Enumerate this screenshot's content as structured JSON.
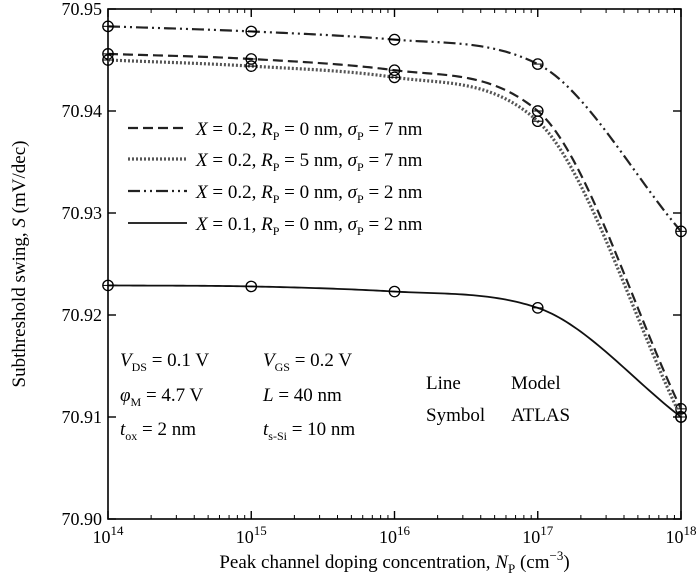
{
  "chart_data": {
    "type": "line",
    "x_scale": "log",
    "xlim": [
      100000000000000.0,
      1e+18
    ],
    "ylim": [
      70.9,
      70.95
    ],
    "x_ticks": [
      {
        "value": 100000000000000.0,
        "base": "10",
        "exp": "14"
      },
      {
        "value": 1000000000000000.0,
        "base": "10",
        "exp": "15"
      },
      {
        "value": 1e+16,
        "base": "10",
        "exp": "16"
      },
      {
        "value": 1e+17,
        "base": "10",
        "exp": "17"
      },
      {
        "value": 1e+18,
        "base": "10",
        "exp": "18"
      }
    ],
    "y_ticks": [
      "70.90",
      "70.91",
      "70.92",
      "70.93",
      "70.94",
      "70.95"
    ],
    "xlabel": {
      "main": "Peak channel doping concentration, ",
      "var": "N",
      "sub": "P",
      "unit_pre": " (cm",
      "unit_sup": "−3",
      "unit_post": ")"
    },
    "ylabel": {
      "main": "Subthreshold swing, ",
      "var": "S",
      "unit": " (mV/dec)"
    },
    "grid": false,
    "legend_position": "upper-left",
    "series": [
      {
        "name": "X = 0.2, RP = 0 nm, σP = 7 nm",
        "style": "dashed",
        "legend": {
          "x": "0.2",
          "r": "0",
          "s": "7"
        },
        "x": [
          100000000000000.0,
          1000000000000000.0,
          1e+16,
          1e+17,
          1e+18
        ],
        "y": [
          70.9456,
          70.9451,
          70.944,
          70.94,
          70.9108
        ]
      },
      {
        "name": "X = 0.2, RP = 5 nm, σP = 7 nm",
        "style": "dotted",
        "legend": {
          "x": "0.2",
          "r": "5",
          "s": "7"
        },
        "x": [
          100000000000000.0,
          1000000000000000.0,
          1e+16,
          1e+17,
          1e+18
        ],
        "y": [
          70.945,
          70.9444,
          70.9433,
          70.939,
          70.91
        ]
      },
      {
        "name": "X = 0.2, RP = 0 nm, σP = 2 nm",
        "style": "dashdotdot",
        "legend": {
          "x": "0.2",
          "r": "0",
          "s": "2"
        },
        "x": [
          100000000000000.0,
          1000000000000000.0,
          1e+16,
          1e+17,
          1e+18
        ],
        "y": [
          70.9483,
          70.9478,
          70.947,
          70.9446,
          70.9282
        ]
      },
      {
        "name": "X = 0.1, RP = 0 nm, σP = 2 nm",
        "style": "solid",
        "legend": {
          "x": "0.1",
          "r": "0",
          "s": "2"
        },
        "x": [
          100000000000000.0,
          1000000000000000.0,
          1e+16,
          1e+17,
          1e+18
        ],
        "y": [
          70.9229,
          70.9228,
          70.9223,
          70.9207,
          70.91
        ]
      }
    ],
    "legend_labels": {
      "X": "X",
      "R": "R",
      "sigma": "σ",
      "sub": "P",
      "eq": " = ",
      "sep": ", ",
      "nm": " nm"
    },
    "annotations": {
      "params": [
        {
          "var": "V",
          "sub": "DS",
          "text": " = 0.1 V"
        },
        {
          "var": "V",
          "sub": "GS",
          "text": " = 0.2 V"
        },
        {
          "var": "φ",
          "sub": "M",
          "text": " = 4.7 V"
        },
        {
          "var": "L",
          "sub": "",
          "text": " = 40 nm"
        },
        {
          "var": "t",
          "sub": "ox",
          "text": " = 2 nm"
        },
        {
          "var": "t",
          "sub": "s-Si",
          "text": " = 10 nm"
        }
      ],
      "key": [
        {
          "label": "Line",
          "value": "Model"
        },
        {
          "label": "Symbol",
          "value": "ATLAS"
        }
      ]
    }
  }
}
